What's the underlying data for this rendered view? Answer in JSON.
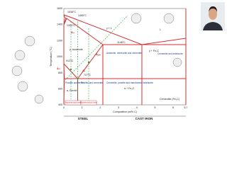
{
  "axes": {
    "y_label": "Temperature (°C)",
    "x_label": "Composition (wt% C)",
    "y_ticks": [
      "1600",
      "1400",
      "1200",
      "1000",
      "800",
      "600",
      "400"
    ],
    "x_ticks": [
      "0",
      "1",
      "2",
      "3",
      "4",
      "5",
      "6",
      "6.7"
    ]
  },
  "temperatures": [
    "1538°C",
    "1495°C",
    "1394°C",
    "1148°C",
    "912°C",
    "727°C"
  ],
  "critical_lines": [
    "A₄",
    "A₃",
    "A꜀ₘ",
    "A₁"
  ],
  "regions": [
    "L",
    "γ + L",
    "γ, Austenite",
    "α, Ferrite",
    "α + Fe₃C",
    "γ + Fe₃C",
    "Cementite (Fe₃C)",
    "Austenite, ledeburite and cementite",
    "Cementite and ledeburite",
    "Pearlite and ferrite",
    "Pearlite and cementite",
    "Cementite, pearlite and transformed ledeburite"
  ],
  "notes": [
    "Hypoeutectoid steel",
    "Hypereutectoid steel"
  ],
  "sections": [
    "STEEL",
    "CAST IRON"
  ]
}
